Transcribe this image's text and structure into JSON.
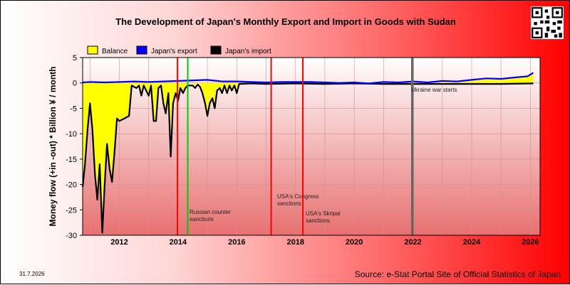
{
  "title": "The Development of Japan's Monthly Export and Import in Goods with Sudan",
  "footer": {
    "date": "31.7.2026",
    "source": "Source: e-Stat Portal Site of Official Statistics of Japan"
  },
  "chart_data": {
    "type": "area",
    "title": "The Development of Japan's Monthly Export and Import in Goods with Sudan",
    "ylabel": "Money flow (+in -out) * Billion ¥ / month",
    "xlabel": "",
    "xlim": [
      2010.75,
      2026.33
    ],
    "ylim": [
      -30,
      5
    ],
    "yticks": [
      5,
      0,
      -5,
      -10,
      -15,
      -20,
      -25,
      -30
    ],
    "xticks": [
      2012,
      2014,
      2016,
      2018,
      2020,
      2022,
      2024,
      2026
    ],
    "grid": true,
    "legend": {
      "placement": "top-left",
      "items": [
        {
          "label": "Balance",
          "color": "#ffff00"
        },
        {
          "label": "Japan's export",
          "color": "#0000ff"
        },
        {
          "label": "Japan's import",
          "color": "#000000"
        }
      ]
    },
    "series": [
      {
        "name": "Japan's export",
        "color": "#0000ff",
        "points": [
          [
            2010.75,
            0.1
          ],
          [
            2011.0,
            0.2
          ],
          [
            2011.5,
            0.1
          ],
          [
            2012.0,
            0.2
          ],
          [
            2012.5,
            0.3
          ],
          [
            2013.0,
            0.2
          ],
          [
            2013.5,
            0.3
          ],
          [
            2014.0,
            0.4
          ],
          [
            2014.5,
            0.5
          ],
          [
            2015.0,
            0.6
          ],
          [
            2015.5,
            0.3
          ],
          [
            2016.0,
            0.3
          ],
          [
            2016.5,
            0.2
          ],
          [
            2017.0,
            0.1
          ],
          [
            2017.5,
            0.2
          ],
          [
            2018.0,
            0.2
          ],
          [
            2018.5,
            0.2
          ],
          [
            2019.0,
            0.1
          ],
          [
            2019.5,
            0.0
          ],
          [
            2020.0,
            0.1
          ],
          [
            2020.5,
            -0.1
          ],
          [
            2021.0,
            0.2
          ],
          [
            2021.5,
            0.1
          ],
          [
            2022.0,
            0.3
          ],
          [
            2022.5,
            0.1
          ],
          [
            2023.0,
            0.4
          ],
          [
            2023.5,
            0.3
          ],
          [
            2024.0,
            0.6
          ],
          [
            2024.5,
            0.9
          ],
          [
            2025.0,
            0.8
          ],
          [
            2025.5,
            1.1
          ],
          [
            2025.9,
            1.3
          ],
          [
            2026.1,
            2.0
          ]
        ]
      },
      {
        "name": "Japan's import",
        "color": "#000000",
        "points": [
          [
            2010.75,
            -20.5
          ],
          [
            2010.83,
            -16
          ],
          [
            2010.92,
            -9
          ],
          [
            2011.0,
            -4
          ],
          [
            2011.08,
            -9
          ],
          [
            2011.17,
            -18
          ],
          [
            2011.25,
            -23
          ],
          [
            2011.33,
            -16
          ],
          [
            2011.42,
            -29.5
          ],
          [
            2011.5,
            -20
          ],
          [
            2011.58,
            -12
          ],
          [
            2011.67,
            -17
          ],
          [
            2011.75,
            -19.5
          ],
          [
            2011.83,
            -14
          ],
          [
            2011.92,
            -7
          ],
          [
            2012.0,
            -7.5
          ],
          [
            2012.17,
            -7
          ],
          [
            2012.33,
            -6.5
          ],
          [
            2012.42,
            -0.5
          ],
          [
            2012.58,
            -1
          ],
          [
            2012.67,
            -0.5
          ],
          [
            2012.75,
            -2.5
          ],
          [
            2012.83,
            -0.5
          ],
          [
            2013.0,
            -2.5
          ],
          [
            2013.08,
            -0.5
          ],
          [
            2013.17,
            -7.5
          ],
          [
            2013.25,
            -7.5
          ],
          [
            2013.33,
            -1
          ],
          [
            2013.42,
            -0.5
          ],
          [
            2013.5,
            -4
          ],
          [
            2013.58,
            -6
          ],
          [
            2013.67,
            -2
          ],
          [
            2013.75,
            -14.5
          ],
          [
            2013.83,
            -4
          ],
          [
            2013.92,
            -2
          ],
          [
            2014.0,
            -3.5
          ],
          [
            2014.08,
            -1
          ],
          [
            2014.17,
            -2
          ],
          [
            2014.25,
            -1
          ],
          [
            2014.33,
            -0.5
          ],
          [
            2014.42,
            -0.5
          ],
          [
            2014.5,
            -0.5
          ],
          [
            2014.58,
            -1
          ],
          [
            2014.67,
            -0.3
          ],
          [
            2014.75,
            -0.8
          ],
          [
            2014.83,
            -2
          ],
          [
            2014.92,
            -4
          ],
          [
            2015.0,
            -6.5
          ],
          [
            2015.08,
            -4
          ],
          [
            2015.17,
            -3
          ],
          [
            2015.25,
            -5
          ],
          [
            2015.33,
            -1.5
          ],
          [
            2015.42,
            -1
          ],
          [
            2015.5,
            -2
          ],
          [
            2015.58,
            -0.5
          ],
          [
            2015.67,
            -2
          ],
          [
            2015.75,
            -0.5
          ],
          [
            2015.83,
            -1.5
          ],
          [
            2015.92,
            -0.5
          ],
          [
            2016.0,
            -2
          ],
          [
            2016.08,
            -0.2
          ],
          [
            2016.5,
            -0.1
          ],
          [
            2017.0,
            -0.2
          ],
          [
            2018.0,
            -0.1
          ],
          [
            2019.0,
            -0.2
          ],
          [
            2020.0,
            -0.1
          ],
          [
            2021.0,
            -0.2
          ],
          [
            2022.0,
            -0.2
          ],
          [
            2023.0,
            -0.2
          ],
          [
            2024.0,
            -0.2
          ],
          [
            2025.0,
            -0.2
          ],
          [
            2026.1,
            -0.1
          ]
        ]
      }
    ],
    "events": [
      {
        "x": 2013.98,
        "color": "#ff0000",
        "label": ""
      },
      {
        "x": 2014.33,
        "color": "#00cc00",
        "label": "Russian counter sanctions"
      },
      {
        "x": 2017.17,
        "color": "#ff0000",
        "label": "USA's Congress sanctions"
      },
      {
        "x": 2018.25,
        "color": "#ff0000",
        "label": "USA's Skripal sanctions"
      },
      {
        "x": 2021.98,
        "color": "#666666",
        "label": "Ukraine war starts"
      }
    ]
  }
}
